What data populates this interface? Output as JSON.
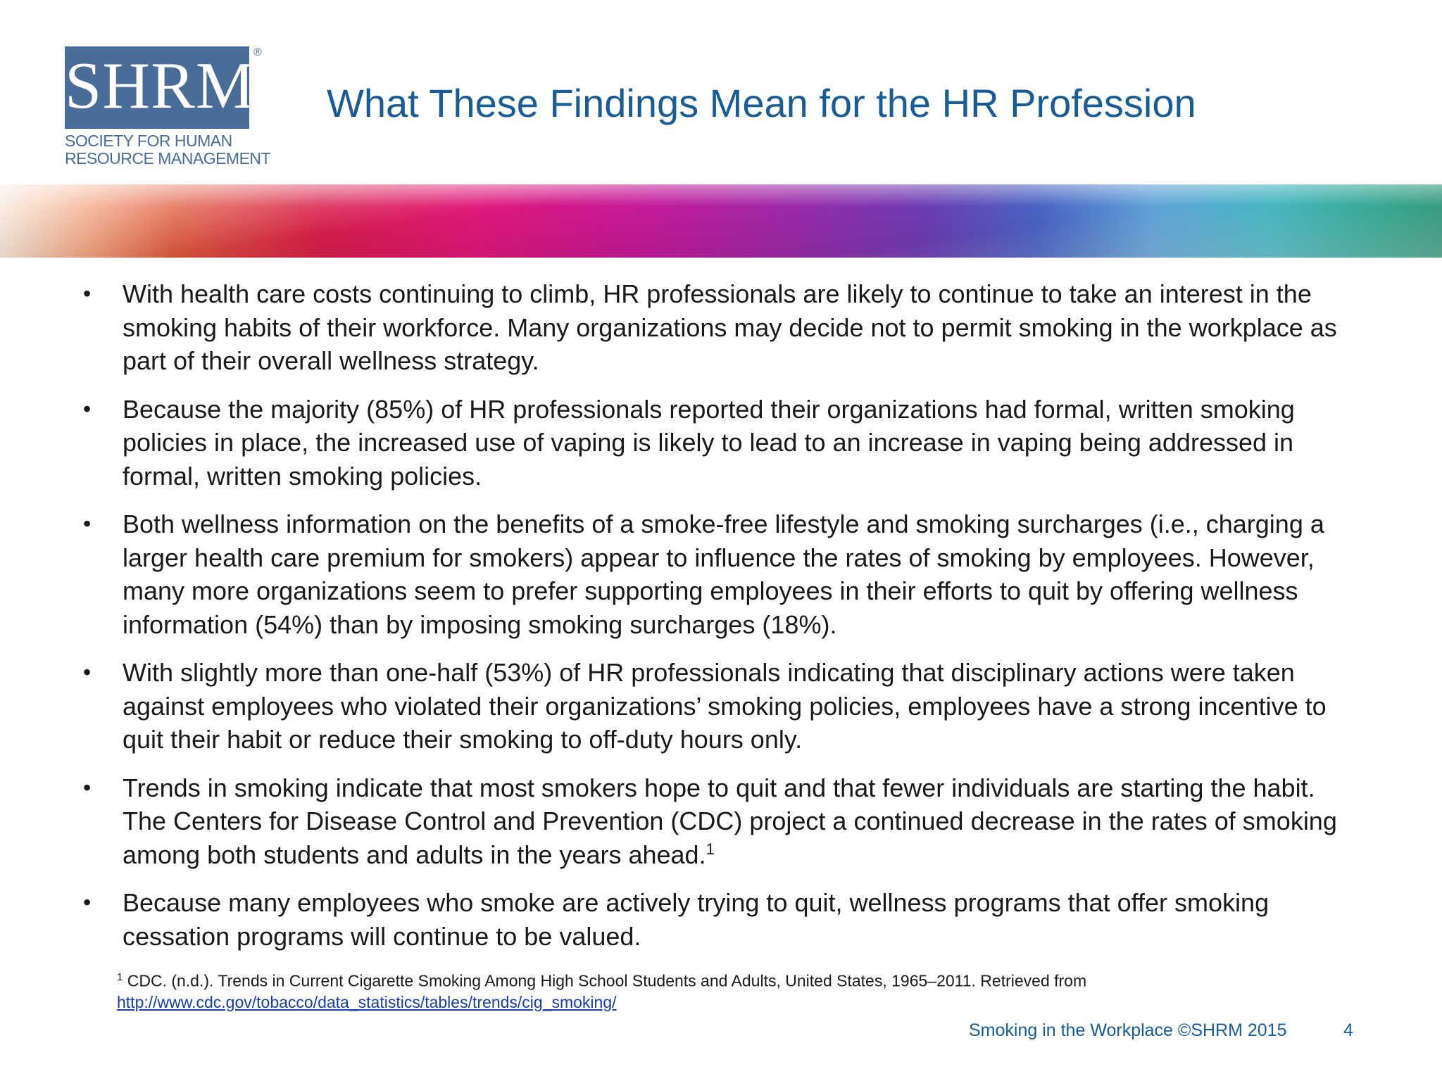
{
  "logo": {
    "letters": "SHRM",
    "registered": "®",
    "tagline_line1": "SOCIETY FOR HUMAN",
    "tagline_line2": "RESOURCE MANAGEMENT",
    "color": "#4a6c98"
  },
  "slide": {
    "title": "What These Findings Mean for the HR Profession",
    "title_color": "#1a5c95",
    "bullet_glyph": "•",
    "bullets": [
      "With health care costs continuing to climb, HR professionals are likely to continue to take an interest in the smoking habits of their workforce. Many organizations may decide not to permit smoking in the workplace as part of their overall wellness strategy.",
      "Because the majority (85%) of HR professionals reported their organizations had formal, written smoking policies in place, the increased use of vaping is likely to lead to an increase in vaping being addressed in formal, written smoking policies.",
      "Both wellness information on the benefits of a smoke-free lifestyle and smoking surcharges (i.e., charging a larger health care premium for smokers) appear to influence the rates of smoking by employees. However, many more organizations seem to prefer supporting employees in their efforts to quit by offering wellness information (54%) than by imposing smoking surcharges (18%).",
      "With slightly more than one-half (53%) of HR professionals indicating that disciplinary actions were taken against employees who violated their organizations’ smoking policies, employees have a strong incentive to quit their habit or reduce their smoking to off-duty hours only.",
      "Trends in smoking indicate that most smokers hope to quit and that fewer individuals are starting the habit. The Centers for Disease Control and Prevention (CDC) project a continued decrease in the rates of smoking among both students and adults in the years ahead.",
      "Because many employees who smoke are actively trying to quit, wellness programs that offer smoking cessation programs will continue to be valued."
    ],
    "bullet5_superscript": "1",
    "footnote": {
      "marker": "1",
      "text": " CDC. (n.d.). Trends in Current Cigarette Smoking Among High School Students and Adults, United States, 1965–2011. Retrieved from",
      "link": "http://www.cdc.gov/tobacco/data_statistics/tables/trends/cig_smoking/"
    },
    "footer_text": "Smoking in the Workplace ©SHRM 2015",
    "page_number": "4"
  }
}
